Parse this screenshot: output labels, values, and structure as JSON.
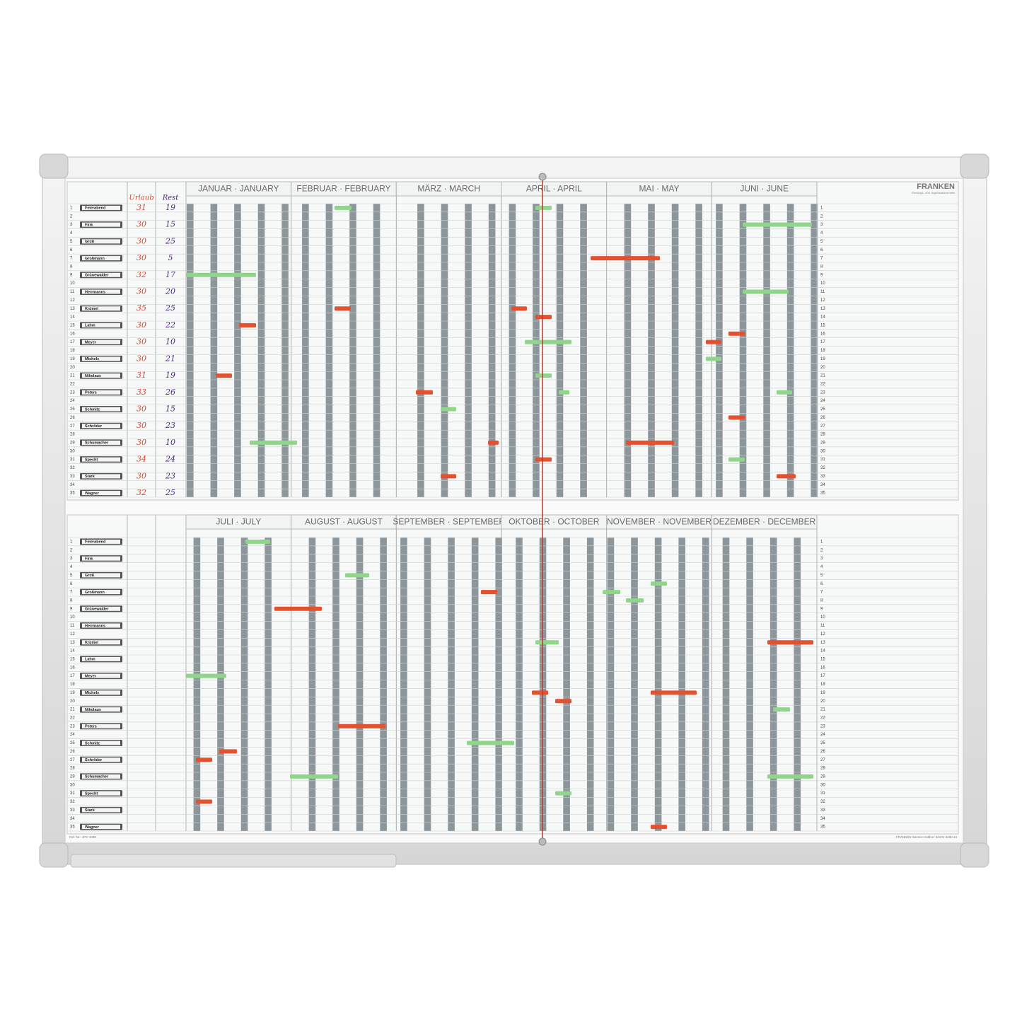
{
  "brand": {
    "name": "FRANKEN",
    "tagline": "Planungs- und Organisationsmittel"
  },
  "columns": {
    "vacation": "Urlaub",
    "remaining": "Rest"
  },
  "halves": [
    {
      "months": [
        "JANUAR · JANUARY",
        "FEBRUAR · FEBRUARY",
        "MÄRZ · MARCH",
        "APRIL · APRIL",
        "MAI · MAY",
        "JUNI · JUNE"
      ]
    },
    {
      "months": [
        "JULI · JULY",
        "AUGUST · AUGUST",
        "SEPTEMBER · SEPTEMBER",
        "OKTOBER · OCTOBER",
        "NOVEMBER · NOVEMBER",
        "DEZEMBER · DECEMBER"
      ]
    }
  ],
  "rows": [
    1,
    2,
    3,
    4,
    5,
    6,
    7,
    8,
    9,
    10,
    11,
    12,
    13,
    14,
    15,
    16,
    17,
    18,
    19,
    20,
    21,
    22,
    23,
    24,
    25,
    26,
    27,
    28,
    29,
    30,
    31,
    32,
    33,
    34,
    35
  ],
  "employees": [
    {
      "name": "Feierabend",
      "vacation": 31,
      "remaining": 19
    },
    {
      "name": "Fink",
      "vacation": 30,
      "remaining": 15
    },
    {
      "name": "Groß",
      "vacation": 30,
      "remaining": 25
    },
    {
      "name": "Großmann",
      "vacation": 30,
      "remaining": 5
    },
    {
      "name": "Grünewalder",
      "vacation": 32,
      "remaining": 17
    },
    {
      "name": "Herrmanns",
      "vacation": 30,
      "remaining": 20
    },
    {
      "name": "Krümel",
      "vacation": 35,
      "remaining": 25
    },
    {
      "name": "Lahm",
      "vacation": 30,
      "remaining": 22
    },
    {
      "name": "Meyer",
      "vacation": 30,
      "remaining": 10
    },
    {
      "name": "Michels",
      "vacation": 30,
      "remaining": 21
    },
    {
      "name": "Nikolaus",
      "vacation": 31,
      "remaining": 19
    },
    {
      "name": "Peters",
      "vacation": 33,
      "remaining": 26
    },
    {
      "name": "Schmitz",
      "vacation": 30,
      "remaining": 15
    },
    {
      "name": "Schröder",
      "vacation": 30,
      "remaining": 23
    },
    {
      "name": "Schumacher",
      "vacation": 30,
      "remaining": 10
    },
    {
      "name": "Specht",
      "vacation": 34,
      "remaining": 24
    },
    {
      "name": "Stark",
      "vacation": 30,
      "remaining": 23
    },
    {
      "name": "Wagner",
      "vacation": 32,
      "remaining": 25
    }
  ],
  "footer": {
    "ref": "Ref.-Nr.: JPC 1039",
    "hotline": "FRANKEN Service-Hotline: 02131 3480-44"
  }
}
